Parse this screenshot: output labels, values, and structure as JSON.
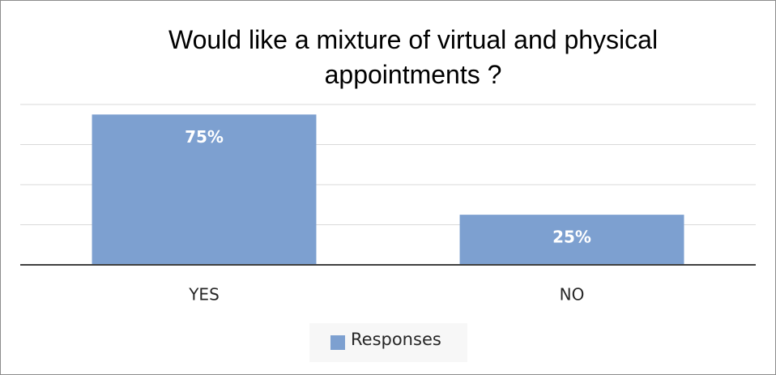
{
  "chart_data": {
    "type": "bar",
    "title": "Would like a mixture of virtual and physical appointments ?",
    "categories": [
      "YES",
      "NO"
    ],
    "series": [
      {
        "name": "Responses",
        "color": "#7da0d0",
        "values": [
          75,
          25
        ],
        "value_labels": [
          "75%",
          "25%"
        ]
      }
    ],
    "ylim": [
      0,
      80
    ],
    "yticks": [
      0,
      20,
      40,
      60,
      80
    ],
    "grid": true,
    "legend": "bottom"
  }
}
